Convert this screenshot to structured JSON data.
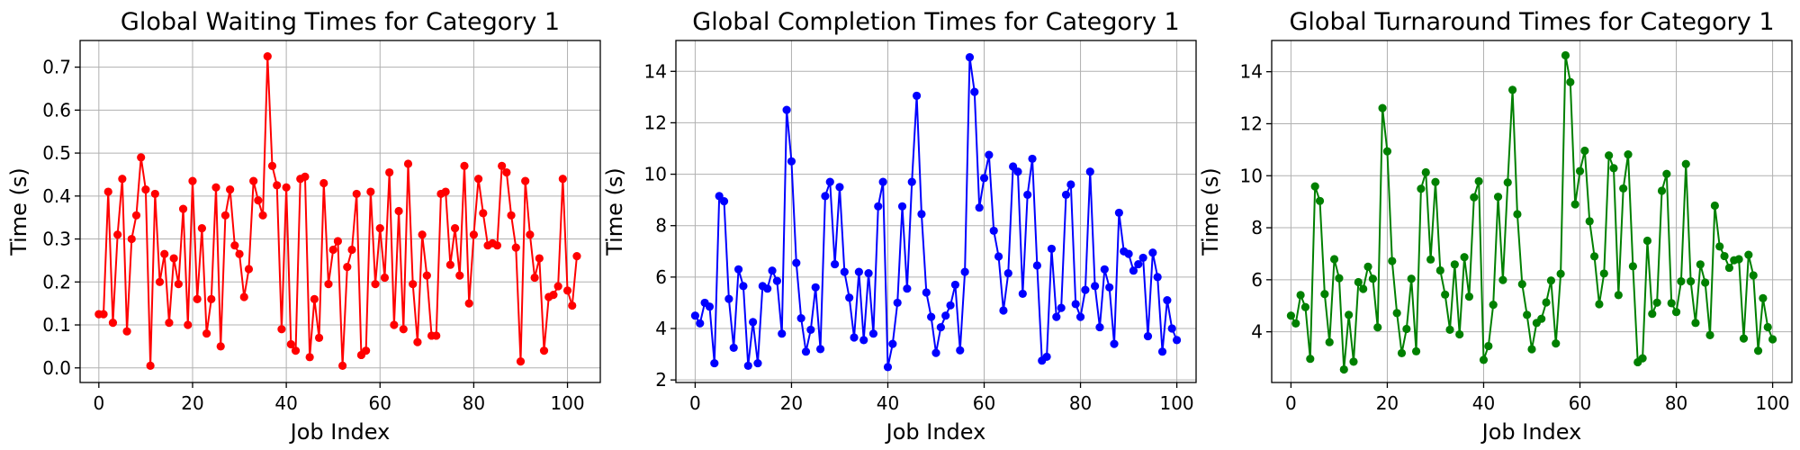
{
  "chart_data": [
    {
      "type": "line",
      "title": "Global Waiting Times for Category 1",
      "xlabel": "Job Index",
      "ylabel": "Time (s)",
      "xlim": [
        -4,
        107
      ],
      "ylim": [
        -0.034,
        0.762
      ],
      "xticks": [
        0,
        20,
        40,
        60,
        80,
        100
      ],
      "yticks": [
        0.0,
        0.1,
        0.2,
        0.3,
        0.4,
        0.5,
        0.6,
        0.7
      ],
      "ytick_labels": [
        "0.0",
        "0.1",
        "0.2",
        "0.3",
        "0.4",
        "0.5",
        "0.6",
        "0.7"
      ],
      "grid": true,
      "color": "#ff0000",
      "x": [
        0,
        1,
        2,
        3,
        4,
        5,
        6,
        7,
        8,
        9,
        10,
        11,
        12,
        13,
        14,
        15,
        16,
        17,
        18,
        19,
        20,
        21,
        22,
        23,
        24,
        25,
        26,
        27,
        28,
        29,
        30,
        31,
        32,
        33,
        34,
        35,
        36,
        37,
        38,
        39,
        40,
        41,
        42,
        43,
        44,
        45,
        46,
        47,
        48,
        49,
        50,
        51,
        52,
        53,
        54,
        55,
        56,
        57,
        58,
        59,
        60,
        61,
        62,
        63,
        64,
        65,
        66,
        67,
        68,
        69,
        70,
        71,
        72,
        73,
        74,
        75,
        76,
        77,
        78,
        79,
        80,
        81,
        82,
        83,
        84,
        85,
        86,
        87,
        88,
        89,
        90,
        91,
        92,
        93,
        94,
        95,
        96,
        97,
        98,
        99,
        100,
        101,
        102
      ],
      "values": [
        0.125,
        0.125,
        0.41,
        0.105,
        0.31,
        0.44,
        0.085,
        0.3,
        0.355,
        0.49,
        0.415,
        0.005,
        0.405,
        0.2,
        0.265,
        0.105,
        0.255,
        0.195,
        0.37,
        0.1,
        0.435,
        0.16,
        0.325,
        0.08,
        0.16,
        0.42,
        0.05,
        0.355,
        0.415,
        0.285,
        0.265,
        0.165,
        0.23,
        0.435,
        0.39,
        0.355,
        0.725,
        0.47,
        0.425,
        0.09,
        0.42,
        0.055,
        0.04,
        0.44,
        0.445,
        0.025,
        0.16,
        0.07,
        0.43,
        0.195,
        0.275,
        0.295,
        0.005,
        0.235,
        0.275,
        0.405,
        0.03,
        0.04,
        0.41,
        0.195,
        0.325,
        0.21,
        0.455,
        0.1,
        0.365,
        0.09,
        0.475,
        0.195,
        0.06,
        0.31,
        0.215,
        0.075,
        0.075,
        0.405,
        0.41,
        0.24,
        0.325,
        0.215,
        0.47,
        0.15,
        0.31,
        0.44,
        0.36,
        0.285,
        0.29,
        0.285,
        0.47,
        0.455,
        0.355,
        0.28,
        0.015,
        0.435,
        0.31,
        0.21,
        0.255,
        0.04,
        0.165,
        0.17,
        0.19,
        0.44,
        0.18,
        0.145,
        0.26
      ]
    },
    {
      "type": "line",
      "title": "Global Completion Times for Category 1",
      "xlabel": "Job Index",
      "ylabel": "Time (s)",
      "xlim": [
        -4,
        104
      ],
      "ylim": [
        1.9,
        15.2
      ],
      "xticks": [
        0,
        20,
        40,
        60,
        80,
        100
      ],
      "yticks": [
        2,
        4,
        6,
        8,
        10,
        12,
        14
      ],
      "ytick_labels": [
        "2",
        "4",
        "6",
        "8",
        "10",
        "12",
        "14"
      ],
      "grid": true,
      "color": "#0000ff",
      "x": [
        0,
        1,
        2,
        3,
        4,
        5,
        6,
        7,
        8,
        9,
        10,
        11,
        12,
        13,
        14,
        15,
        16,
        17,
        18,
        19,
        20,
        21,
        22,
        23,
        24,
        25,
        26,
        27,
        28,
        29,
        30,
        31,
        32,
        33,
        34,
        35,
        36,
        37,
        38,
        39,
        40,
        41,
        42,
        43,
        44,
        45,
        46,
        47,
        48,
        49,
        50,
        51,
        52,
        53,
        54,
        55,
        56,
        57,
        58,
        59,
        60,
        61,
        62,
        63,
        64,
        65,
        66,
        67,
        68,
        69,
        70,
        71,
        72,
        73,
        74,
        75,
        76,
        77,
        78,
        79,
        80,
        81,
        82,
        83,
        84,
        85,
        86,
        87,
        88,
        89,
        90,
        91,
        92,
        93,
        94,
        95,
        96,
        97,
        98,
        99,
        100
      ],
      "values": [
        4.5,
        4.2,
        5.0,
        4.85,
        2.65,
        9.15,
        8.95,
        5.15,
        3.25,
        6.3,
        5.65,
        2.55,
        4.25,
        2.65,
        5.65,
        5.55,
        6.25,
        5.85,
        3.8,
        12.5,
        10.5,
        6.55,
        4.4,
        3.1,
        3.95,
        5.6,
        3.2,
        9.15,
        9.7,
        6.5,
        9.5,
        6.2,
        5.2,
        3.65,
        6.2,
        3.55,
        6.15,
        3.8,
        8.75,
        9.7,
        2.5,
        3.4,
        5.0,
        8.75,
        5.55,
        9.7,
        13.05,
        8.45,
        5.4,
        4.45,
        3.05,
        4.05,
        4.5,
        4.9,
        5.7,
        3.15,
        6.2,
        14.55,
        13.2,
        8.7,
        9.85,
        10.75,
        7.8,
        6.8,
        4.7,
        6.15,
        10.3,
        10.1,
        5.35,
        9.2,
        10.6,
        6.45,
        2.75,
        2.9,
        7.1,
        4.45,
        4.8,
        9.2,
        9.6,
        4.95,
        4.45,
        5.5,
        10.1,
        5.65,
        4.05,
        6.3,
        5.6,
        3.4,
        8.5,
        7.0,
        6.9,
        6.25,
        6.5,
        6.75,
        3.7,
        6.95,
        6.0,
        3.1,
        5.1,
        4.0,
        3.55
      ]
    },
    {
      "type": "line",
      "title": "Global Turnaround Times for Category 1",
      "xlabel": "Job Index",
      "ylabel": "Time (s)",
      "xlim": [
        -4,
        104
      ],
      "ylim": [
        2.05,
        15.2
      ],
      "xticks": [
        0,
        20,
        40,
        60,
        80,
        100
      ],
      "yticks": [
        4,
        6,
        8,
        10,
        12,
        14
      ],
      "ytick_labels": [
        "4",
        "6",
        "8",
        "10",
        "12",
        "14"
      ],
      "grid": true,
      "color": "#008000",
      "x": [
        0,
        1,
        2,
        3,
        4,
        5,
        6,
        7,
        8,
        9,
        10,
        11,
        12,
        13,
        14,
        15,
        16,
        17,
        18,
        19,
        20,
        21,
        22,
        23,
        24,
        25,
        26,
        27,
        28,
        29,
        30,
        31,
        32,
        33,
        34,
        35,
        36,
        37,
        38,
        39,
        40,
        41,
        42,
        43,
        44,
        45,
        46,
        47,
        48,
        49,
        50,
        51,
        52,
        53,
        54,
        55,
        56,
        57,
        58,
        59,
        60,
        61,
        62,
        63,
        64,
        65,
        66,
        67,
        68,
        69,
        70,
        71,
        72,
        73,
        74,
        75,
        76,
        77,
        78,
        79,
        80,
        81,
        82,
        83,
        84,
        85,
        86,
        87,
        88,
        89,
        90,
        91,
        92,
        93,
        94,
        95,
        96,
        97,
        98,
        99,
        100
      ],
      "values": [
        4.62,
        4.32,
        5.41,
        4.95,
        2.96,
        9.59,
        9.03,
        5.45,
        3.6,
        6.79,
        6.06,
        2.55,
        4.65,
        2.85,
        5.91,
        5.65,
        6.5,
        6.04,
        4.17,
        12.6,
        10.94,
        6.72,
        4.72,
        3.18,
        4.11,
        6.04,
        3.25,
        9.5,
        10.13,
        6.78,
        9.76,
        6.36,
        5.43,
        4.08,
        6.59,
        3.9,
        6.87,
        5.35,
        9.17,
        9.79,
        2.92,
        3.45,
        5.04,
        9.19,
        5.99,
        9.74,
        13.3,
        8.52,
        5.83,
        4.65,
        3.33,
        4.34,
        4.5,
        5.13,
        5.97,
        3.55,
        6.23,
        14.63,
        13.6,
        8.9,
        10.18,
        10.96,
        8.25,
        6.9,
        5.06,
        6.24,
        10.78,
        10.29,
        5.41,
        9.51,
        10.82,
        6.52,
        2.83,
        2.98,
        7.5,
        4.69,
        5.12,
        9.42,
        10.07,
        5.1,
        4.76,
        5.94,
        10.45,
        5.94,
        4.34,
        6.59,
        5.89,
        3.87,
        8.85,
        7.28,
        6.91,
        6.46,
        6.75,
        6.79,
        3.74,
        6.96,
        6.17,
        3.27,
        5.29,
        4.18,
        3.71
      ]
    }
  ]
}
